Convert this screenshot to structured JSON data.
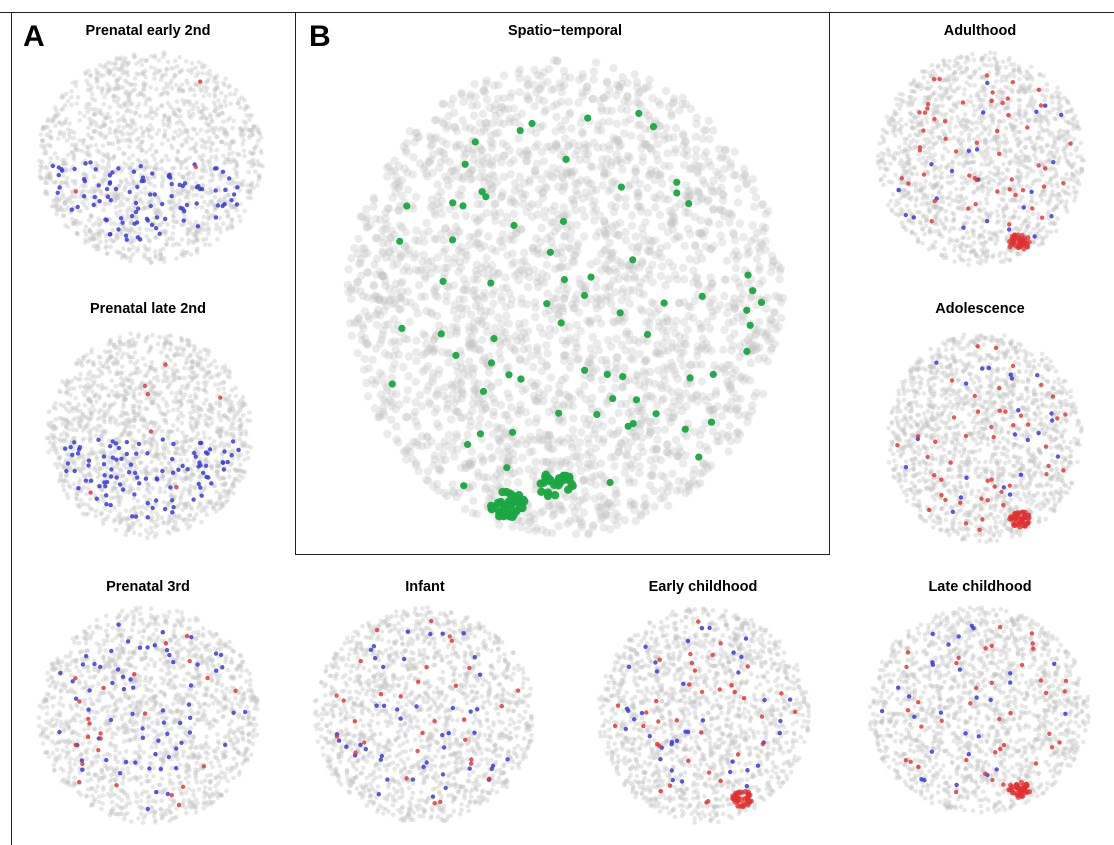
{
  "figure": {
    "panel_letters": [
      "A",
      "B"
    ]
  },
  "chart_data": [
    {
      "type": "scatter",
      "title": "Spatio−temporal",
      "highlight_color": "#1aa642",
      "background_color": "#c2c2c2",
      "grid": false,
      "legend": "none"
    },
    {
      "type": "scatter",
      "title": "Prenatal early 2nd",
      "down_color": "#3b3bd9",
      "up_color": "#e03030",
      "blue_level": 0.9,
      "red_level": 0.05,
      "red_cluster": false,
      "grid": false,
      "legend": "none"
    },
    {
      "type": "scatter",
      "title": "Prenatal late 2nd",
      "down_color": "#3b3bd9",
      "up_color": "#e03030",
      "blue_level": 0.9,
      "red_level": 0.12,
      "red_cluster": false,
      "grid": false,
      "legend": "none"
    },
    {
      "type": "scatter",
      "title": "Prenatal 3rd",
      "down_color": "#3b3bd9",
      "up_color": "#e03030",
      "blue_level": 0.6,
      "red_level": 0.4,
      "red_cluster": false,
      "grid": false,
      "legend": "none"
    },
    {
      "type": "scatter",
      "title": "Infant",
      "down_color": "#3b3bd9",
      "up_color": "#e03030",
      "blue_level": 0.4,
      "red_level": 0.5,
      "red_cluster": false,
      "grid": false,
      "legend": "none"
    },
    {
      "type": "scatter",
      "title": "Early childhood",
      "down_color": "#3b3bd9",
      "up_color": "#e03030",
      "blue_level": 0.35,
      "red_level": 0.6,
      "red_cluster": true,
      "grid": false,
      "legend": "none"
    },
    {
      "type": "scatter",
      "title": "Late childhood",
      "down_color": "#3b3bd9",
      "up_color": "#e03030",
      "blue_level": 0.25,
      "red_level": 0.65,
      "red_cluster": true,
      "grid": false,
      "legend": "none"
    },
    {
      "type": "scatter",
      "title": "Adolescence",
      "down_color": "#3b3bd9",
      "up_color": "#e03030",
      "blue_level": 0.2,
      "red_level": 0.8,
      "red_cluster": true,
      "grid": false,
      "legend": "none"
    },
    {
      "type": "scatter",
      "title": "Adulthood",
      "down_color": "#3b3bd9",
      "up_color": "#e03030",
      "blue_level": 0.2,
      "red_level": 0.85,
      "red_cluster": true,
      "grid": false,
      "legend": "none"
    }
  ]
}
